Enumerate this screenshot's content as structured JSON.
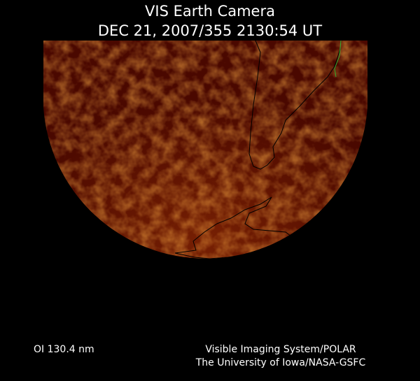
{
  "header": {
    "title": "VIS Earth Camera",
    "subtitle": "DEC 21, 2007/355 2130:54 UT"
  },
  "footer": {
    "filter_label": "OI  130.4 nm",
    "instrument": "Visible Imaging System/POLAR",
    "organization": "The University of Iowa/NASA-GSFC"
  },
  "image": {
    "colors": {
      "background": "#000000",
      "disc_dark": "#4a0800",
      "disc_bright": "#e07a1a",
      "coastline": "#000000",
      "grid_line": "#2fae2f"
    }
  }
}
